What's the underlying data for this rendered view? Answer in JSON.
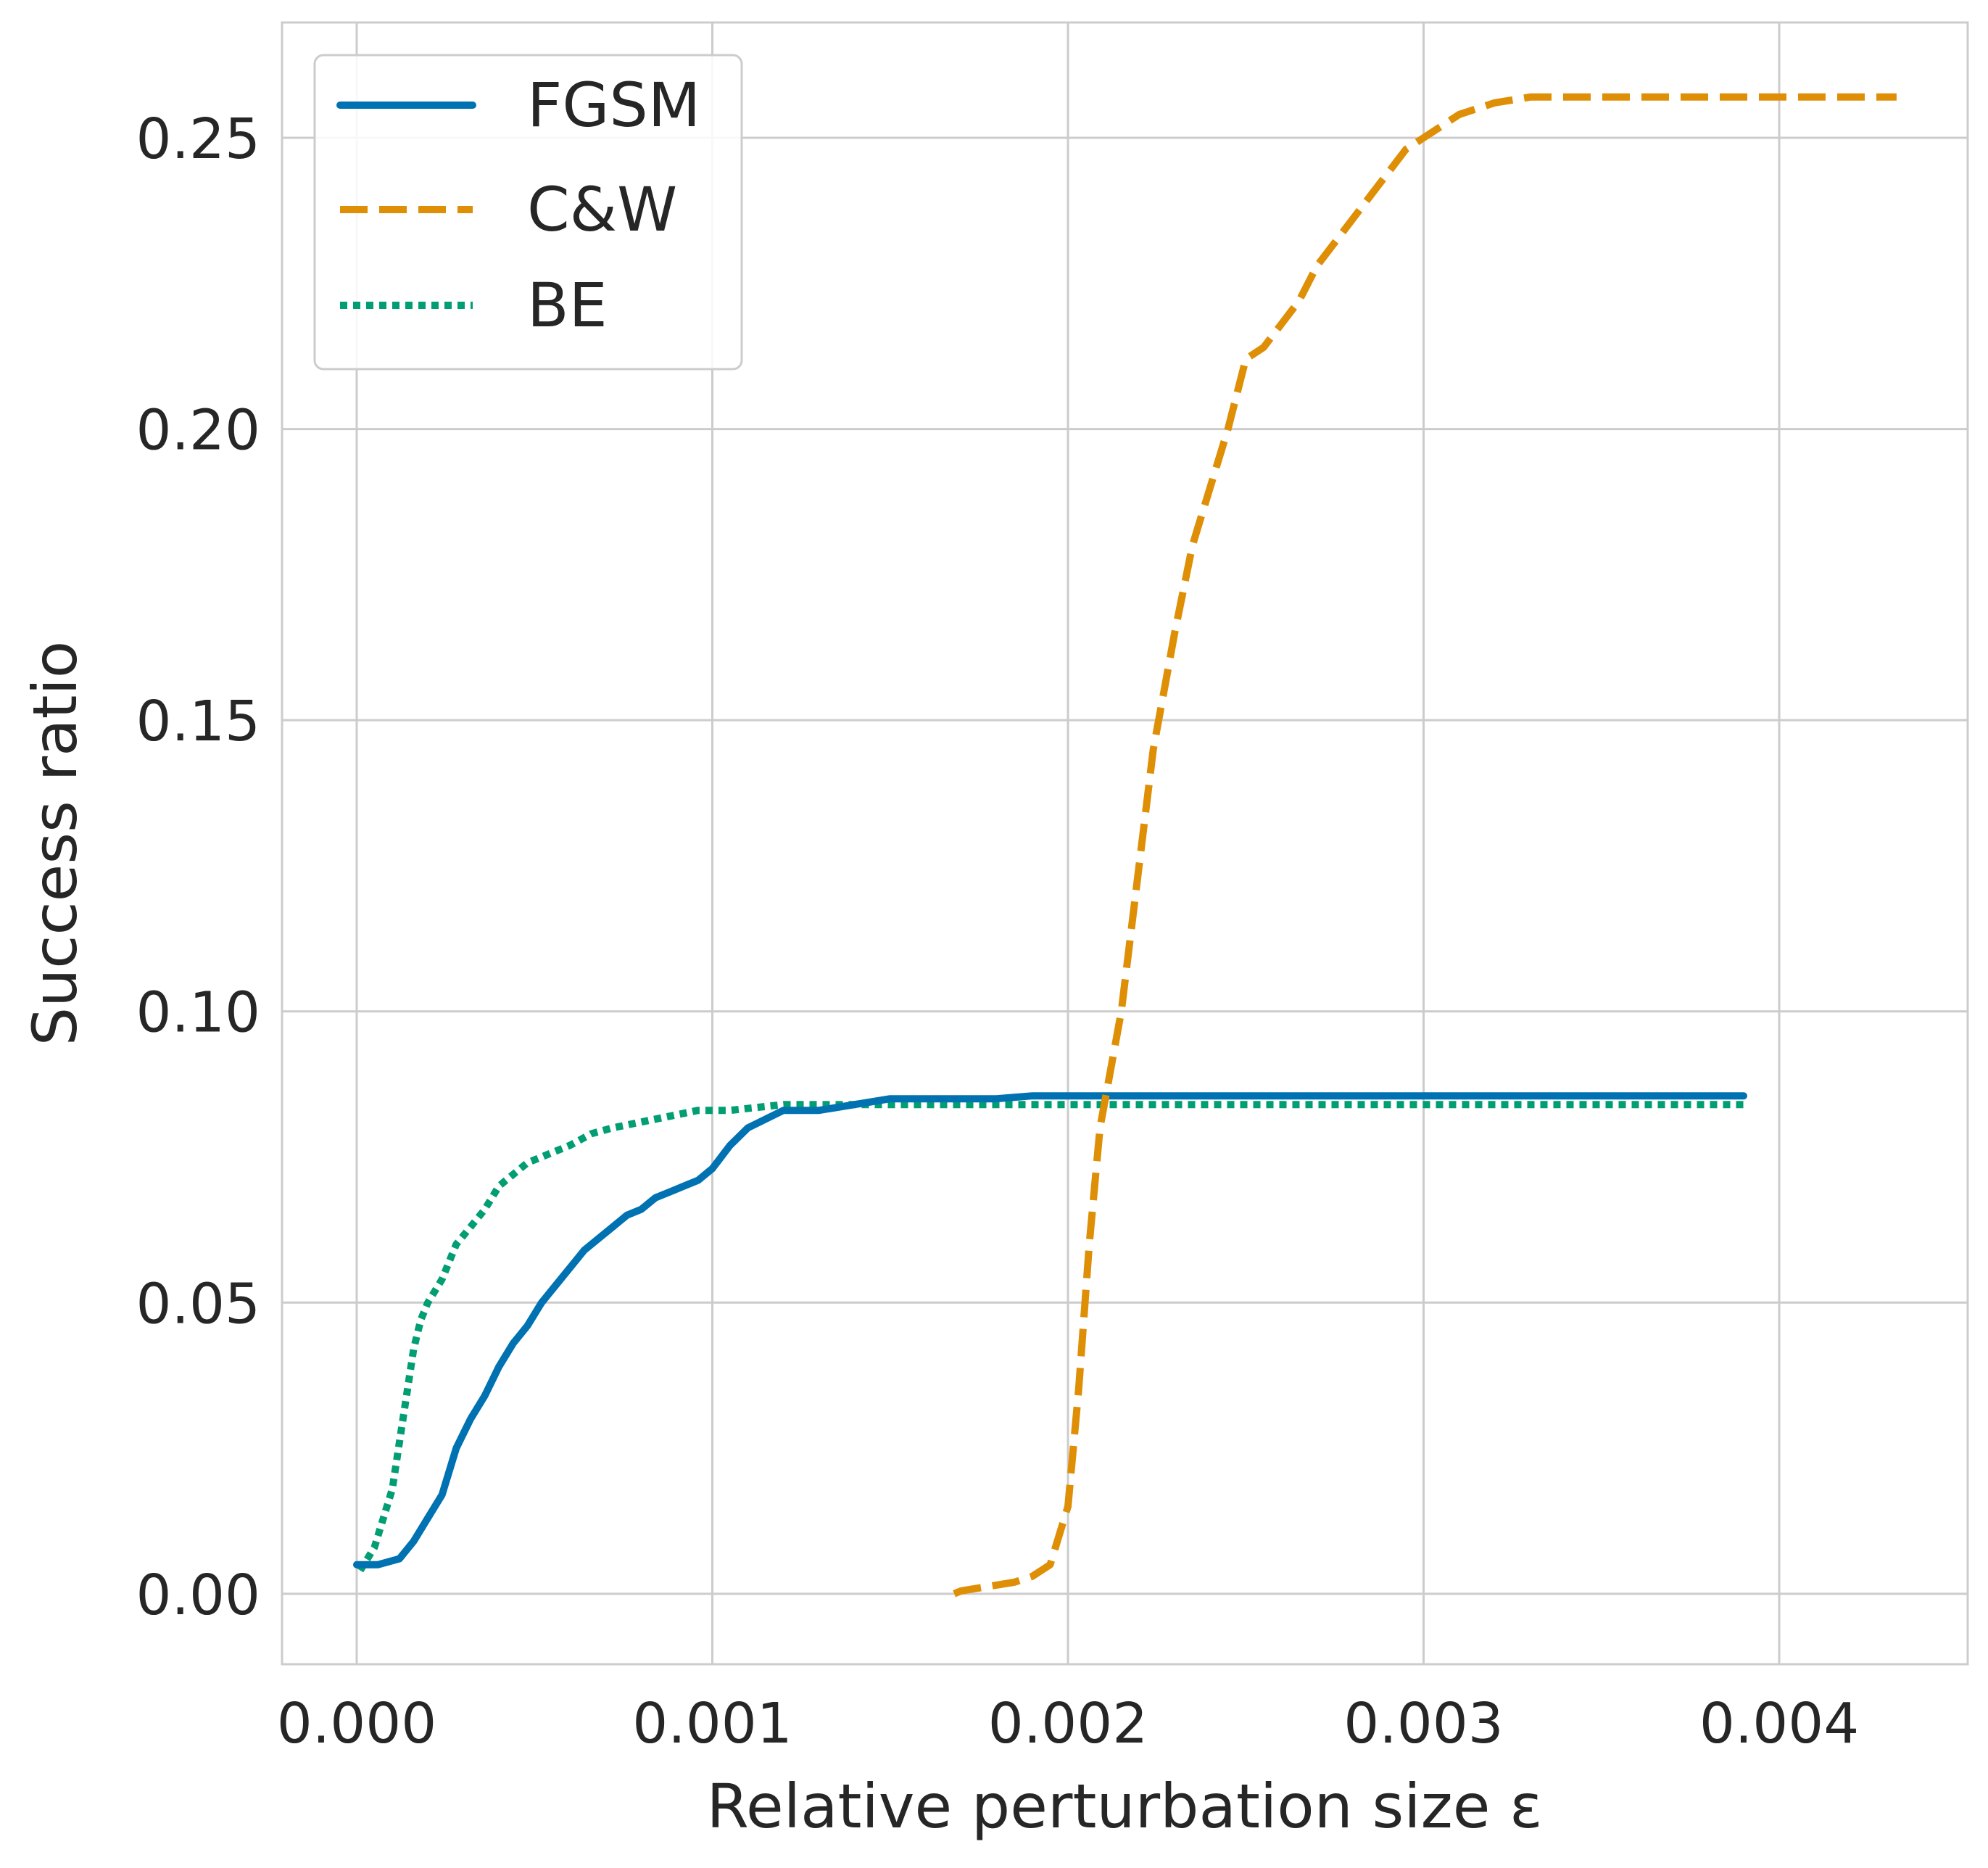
{
  "chart_data": {
    "type": "line",
    "xlabel": "Relative perturbation size ε",
    "ylabel": "Success ratio",
    "xlim": [
      -0.00021,
      0.00453
    ],
    "ylim": [
      -0.0121,
      0.2698
    ],
    "xticks": [
      0.0,
      0.001,
      0.002,
      0.003,
      0.004
    ],
    "xtick_labels": [
      "0.000",
      "0.001",
      "0.002",
      "0.003",
      "0.004"
    ],
    "yticks": [
      0.0,
      0.05,
      0.1,
      0.15,
      0.2,
      0.25
    ],
    "ytick_labels": [
      "0.00",
      "0.05",
      "0.10",
      "0.15",
      "0.20",
      "0.25"
    ],
    "grid": true,
    "legend_position": "top-left",
    "series": [
      {
        "name": "FGSM",
        "color": "#0072b2",
        "style": "solid",
        "x": [
          0.0,
          6e-05,
          0.00012,
          0.00016,
          0.0002,
          0.00024,
          0.00028,
          0.00032,
          0.00036,
          0.0004,
          0.00044,
          0.00048,
          0.00052,
          0.00056,
          0.0006,
          0.00064,
          0.00068,
          0.00072,
          0.00076,
          0.0008,
          0.00084,
          0.00088,
          0.00092,
          0.00096,
          0.001,
          0.00105,
          0.0011,
          0.0012,
          0.0013,
          0.0014,
          0.0015,
          0.0016,
          0.0017,
          0.0018,
          0.0019,
          0.002,
          0.0025,
          0.003,
          0.0035,
          0.0039
        ],
        "y": [
          0.005,
          0.005,
          0.006,
          0.009,
          0.013,
          0.017,
          0.025,
          0.03,
          0.034,
          0.039,
          0.043,
          0.046,
          0.05,
          0.053,
          0.056,
          0.059,
          0.061,
          0.063,
          0.065,
          0.066,
          0.068,
          0.069,
          0.07,
          0.071,
          0.073,
          0.077,
          0.08,
          0.083,
          0.083,
          0.084,
          0.085,
          0.085,
          0.085,
          0.085,
          0.0855,
          0.0855,
          0.0855,
          0.0855,
          0.0855,
          0.0855
        ]
      },
      {
        "name": "C&W",
        "color": "#de8f05",
        "style": "dashed",
        "x": [
          0.00168,
          0.0017,
          0.00175,
          0.0018,
          0.00185,
          0.0019,
          0.00195,
          0.002,
          0.00203,
          0.00206,
          0.00209,
          0.00212,
          0.00215,
          0.00218,
          0.00221,
          0.00224,
          0.00227,
          0.0023,
          0.00235,
          0.0024,
          0.00245,
          0.0025,
          0.00255,
          0.0026,
          0.00265,
          0.0027,
          0.00275,
          0.0028,
          0.00285,
          0.0029,
          0.00295,
          0.003,
          0.00305,
          0.0031,
          0.0032,
          0.0033,
          0.0035,
          0.0038,
          0.0041,
          0.00433
        ],
        "y": [
          0.0,
          0.0005,
          0.001,
          0.0015,
          0.002,
          0.003,
          0.005,
          0.015,
          0.035,
          0.06,
          0.08,
          0.09,
          0.1,
          0.115,
          0.13,
          0.145,
          0.155,
          0.165,
          0.18,
          0.19,
          0.2,
          0.212,
          0.214,
          0.218,
          0.222,
          0.228,
          0.232,
          0.236,
          0.24,
          0.244,
          0.248,
          0.25,
          0.252,
          0.254,
          0.256,
          0.257,
          0.257,
          0.257,
          0.257,
          0.257
        ]
      },
      {
        "name": "BE",
        "color": "#029e73",
        "style": "dotted",
        "x": [
          1e-05,
          5e-05,
          0.0001,
          0.00013,
          0.00016,
          0.00018,
          0.0002,
          0.00024,
          0.00028,
          0.00032,
          0.00036,
          0.0004,
          0.00044,
          0.00048,
          0.00052,
          0.00056,
          0.0006,
          0.00066,
          0.00072,
          0.0008,
          0.00088,
          0.00096,
          0.00105,
          0.0012,
          0.0013,
          0.0014,
          0.0015,
          0.002,
          0.0025,
          0.003,
          0.0035,
          0.0039
        ],
        "y": [
          0.004,
          0.008,
          0.018,
          0.03,
          0.042,
          0.047,
          0.05,
          0.054,
          0.06,
          0.063,
          0.066,
          0.07,
          0.072,
          0.074,
          0.075,
          0.076,
          0.077,
          0.079,
          0.08,
          0.081,
          0.082,
          0.083,
          0.083,
          0.084,
          0.084,
          0.084,
          0.084,
          0.084,
          0.084,
          0.084,
          0.084,
          0.084
        ]
      }
    ]
  }
}
